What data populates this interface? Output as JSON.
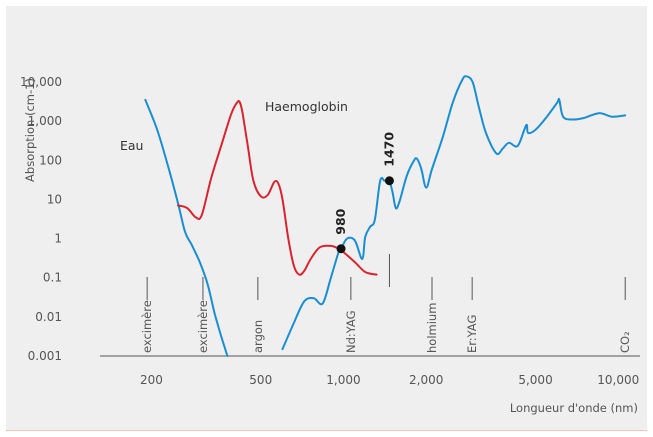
{
  "chart_data": {
    "type": "line",
    "xlabel": "Longueur d'onde (nm)",
    "ylabel": "Absorption (cm-1)",
    "x_scale": "log",
    "y_scale": "log",
    "xlim": [
      130,
      12000
    ],
    "ylim": [
      0.001,
      20000
    ],
    "x_ticks": [
      {
        "value": 200,
        "label": "200"
      },
      {
        "value": 500,
        "label": "500"
      },
      {
        "value": 1000,
        "label": "1,000"
      },
      {
        "value": 2000,
        "label": "2,000"
      },
      {
        "value": 5000,
        "label": "5,000"
      },
      {
        "value": 10000,
        "label": "10,000"
      }
    ],
    "y_ticks": [
      {
        "value": 10000,
        "label": "10,000"
      },
      {
        "value": 1000,
        "label": "1,000"
      },
      {
        "value": 100,
        "label": "100"
      },
      {
        "value": 10,
        "label": "10"
      },
      {
        "value": 1,
        "label": "1"
      },
      {
        "value": 0.1,
        "label": "0.1"
      },
      {
        "value": 0.01,
        "label": "0.01"
      },
      {
        "value": 0.001,
        "label": "0.001"
      }
    ],
    "grid": false,
    "series": [
      {
        "name": "Eau",
        "color": "#1a8ed2",
        "segments": [
          [
            [
              190,
              3500
            ],
            [
              210,
              600
            ],
            [
              230,
              70
            ],
            [
              250,
              8
            ],
            [
              265,
              1.5
            ],
            [
              280,
              0.7
            ],
            [
              300,
              0.25
            ],
            [
              320,
              0.07
            ],
            [
              340,
              0.012
            ],
            [
              360,
              0.003
            ],
            [
              378,
              0.001
            ]
          ],
          [
            [
              600,
              0.0015
            ],
            [
              660,
              0.007
            ],
            [
              720,
              0.025
            ],
            [
              780,
              0.03
            ],
            [
              840,
              0.022
            ],
            [
              900,
              0.1
            ],
            [
              960,
              0.45
            ],
            [
              980,
              0.55
            ],
            [
              1030,
              1
            ],
            [
              1100,
              0.9
            ],
            [
              1170,
              0.3
            ],
            [
              1200,
              1.1
            ],
            [
              1250,
              2
            ],
            [
              1300,
              3
            ],
            [
              1360,
              30
            ],
            [
              1410,
              30
            ],
            [
              1440,
              30
            ],
            [
              1470,
              30
            ],
            [
              1510,
              15
            ],
            [
              1550,
              6
            ],
            [
              1600,
              9
            ],
            [
              1700,
              40
            ],
            [
              1800,
              95
            ],
            [
              1850,
              110
            ],
            [
              1920,
              60
            ],
            [
              2000,
              20
            ],
            [
              2100,
              60
            ],
            [
              2300,
              400
            ],
            [
              2500,
              3000
            ],
            [
              2700,
              11000
            ],
            [
              2800,
              14000
            ],
            [
              2950,
              10000
            ],
            [
              3100,
              2500
            ],
            [
              3300,
              500
            ],
            [
              3600,
              150
            ],
            [
              3800,
              200
            ],
            [
              4000,
              280
            ],
            [
              4300,
              230
            ],
            [
              4550,
              600
            ],
            [
              4650,
              800
            ],
            [
              4700,
              500
            ],
            [
              5000,
              600
            ],
            [
              5500,
              1300
            ],
            [
              6000,
              3000
            ],
            [
              6100,
              3500
            ],
            [
              6300,
              1300
            ],
            [
              6800,
              1100
            ],
            [
              7500,
              1200
            ],
            [
              8500,
              1600
            ],
            [
              9500,
              1300
            ],
            [
              10600,
              1400
            ]
          ]
        ]
      },
      {
        "name": "Haemoglobin",
        "color": "#d9242f",
        "segments": [
          [
            [
              250,
              7
            ],
            [
              270,
              6
            ],
            [
              290,
              3.5
            ],
            [
              305,
              4
            ],
            [
              330,
              35
            ],
            [
              360,
              250
            ],
            [
              390,
              1500
            ],
            [
              410,
              3000
            ],
            [
              420,
              3000
            ],
            [
              430,
              1500
            ],
            [
              450,
              200
            ],
            [
              470,
              30
            ],
            [
              500,
              12
            ],
            [
              530,
              13
            ],
            [
              560,
              28
            ],
            [
              580,
              25
            ],
            [
              600,
              10
            ],
            [
              630,
              1
            ],
            [
              660,
              0.2
            ],
            [
              690,
              0.12
            ],
            [
              720,
              0.15
            ],
            [
              760,
              0.3
            ],
            [
              820,
              0.6
            ],
            [
              900,
              0.65
            ],
            [
              960,
              0.55
            ],
            [
              1000,
              0.45
            ],
            [
              1100,
              0.25
            ],
            [
              1200,
              0.14
            ],
            [
              1320,
              0.12
            ]
          ]
        ]
      }
    ],
    "highlighted_points": [
      {
        "x": 980,
        "y": 0.55,
        "label": "980"
      },
      {
        "x": 1470,
        "y": 30,
        "label": "1470"
      }
    ],
    "lasers": [
      {
        "label": "excimère",
        "x": 193
      },
      {
        "label": "excimère",
        "x": 308
      },
      {
        "label": "argon",
        "x": 488
      },
      {
        "label": "Nd:YAG",
        "x": 1064
      },
      {
        "label": "",
        "x": 1470
      },
      {
        "label": "holmium",
        "x": 2100
      },
      {
        "label": "Er:YAG",
        "x": 2940
      },
      {
        "label": "CO₂",
        "x": 10600
      }
    ]
  }
}
